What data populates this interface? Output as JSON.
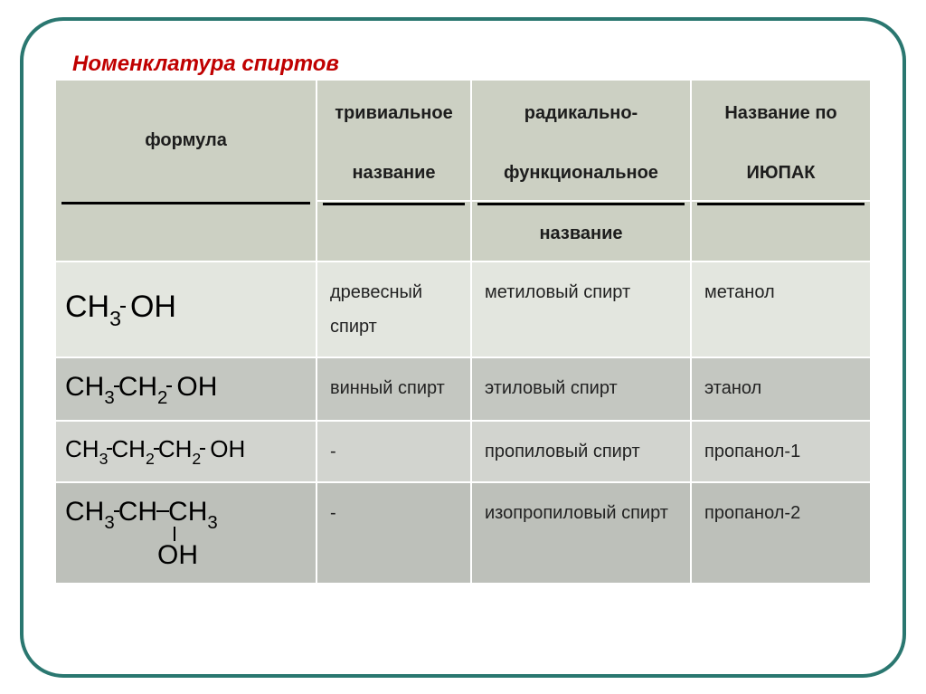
{
  "title": "Номенклатура спиртов",
  "columns": {
    "formula": "формула",
    "trivial": "тривиальное",
    "radical": "радикально-",
    "iupac": "Название по"
  },
  "columns_line2": {
    "formula": "",
    "trivial": "название",
    "radical": "функциональное",
    "iupac": "ИЮПАК"
  },
  "columns_line3": {
    "formula": "",
    "trivial": "",
    "radical": "название",
    "iupac": ""
  },
  "rows": [
    {
      "trivial": "древесный спирт",
      "radical": "метиловый спирт",
      "iupac": "метанол",
      "formula_parts": [
        "CH",
        "3",
        "–",
        " OH"
      ],
      "fontsize": 34
    },
    {
      "trivial": "винный спирт",
      "radical": "этиловый спирт",
      "iupac": "этанол",
      "formula_parts": [
        "CH",
        "3",
        "–",
        "CH",
        "2",
        "–",
        " OH"
      ],
      "fontsize": 30
    },
    {
      "trivial": "-",
      "radical": "пропиловый спирт",
      "iupac": "пропанол-1",
      "formula_parts": [
        "CH",
        "3",
        "–",
        "CH",
        "2",
        "–",
        "CH",
        "2",
        "–",
        " OH"
      ],
      "fontsize": 26
    },
    {
      "trivial": "-",
      "radical": "изопропиловый спирт",
      "iupac": "пропанол-2",
      "formula_parts": [
        "CH",
        "3",
        "–",
        "CH",
        "—",
        "CH",
        "3"
      ],
      "branch": "OH",
      "fontsize": 30
    }
  ],
  "colors": {
    "border": "#2a7770",
    "title": "#c00000",
    "header_bg": "#ccd0c3",
    "row_bgs": [
      "#e3e6df",
      "#c4c7c1",
      "#d2d4cf",
      "#bdc0ba"
    ]
  }
}
